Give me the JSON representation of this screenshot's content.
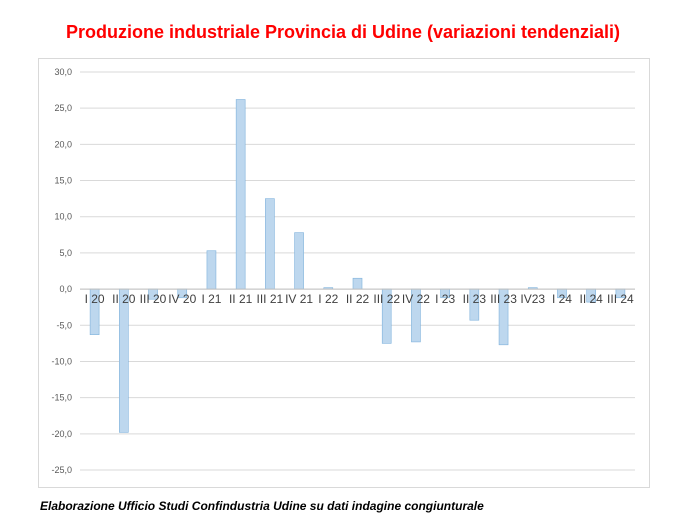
{
  "title": "Produzione industriale Provincia di Udine (variazioni tendenziali)",
  "footnote": "Elaborazione Ufficio Studi Confindustria Udine su dati indagine congiunturale",
  "colors": {
    "title": "#ff0000",
    "bar_fill": "#bdd7ee",
    "bar_stroke": "#7fb2dc",
    "grid": "#d9d9d9"
  },
  "chart_data": {
    "type": "bar",
    "title": "Produzione industriale Provincia di Udine (variazioni tendenziali)",
    "xlabel": "",
    "ylabel": "",
    "ylim": [
      -25,
      30
    ],
    "ytick_step": 5,
    "ytick_labels": [
      "30,0",
      "25,0",
      "20,0",
      "15,0",
      "10,0",
      "5,0",
      "0,0",
      "-5,0",
      "-10,0",
      "-15,0",
      "-20,0",
      "-25,0"
    ],
    "grid": true,
    "legend": "none",
    "categories": [
      "I 20",
      "II 20",
      "III 20",
      "IV 20",
      "I 21",
      "II 21",
      "III 21",
      "IV 21",
      "I 22",
      "II 22",
      "III 22",
      "IV 22",
      "I 23",
      "II 23",
      "III 23",
      "IV23",
      "I 24",
      "II 24",
      "III 24"
    ],
    "values": [
      -6.3,
      -19.8,
      -1.4,
      -1.2,
      5.3,
      26.2,
      12.5,
      7.8,
      0.2,
      1.5,
      -7.5,
      -7.3,
      -1.2,
      -4.3,
      -7.7,
      0.2,
      -1.2,
      -1.8,
      -1.2
    ]
  }
}
